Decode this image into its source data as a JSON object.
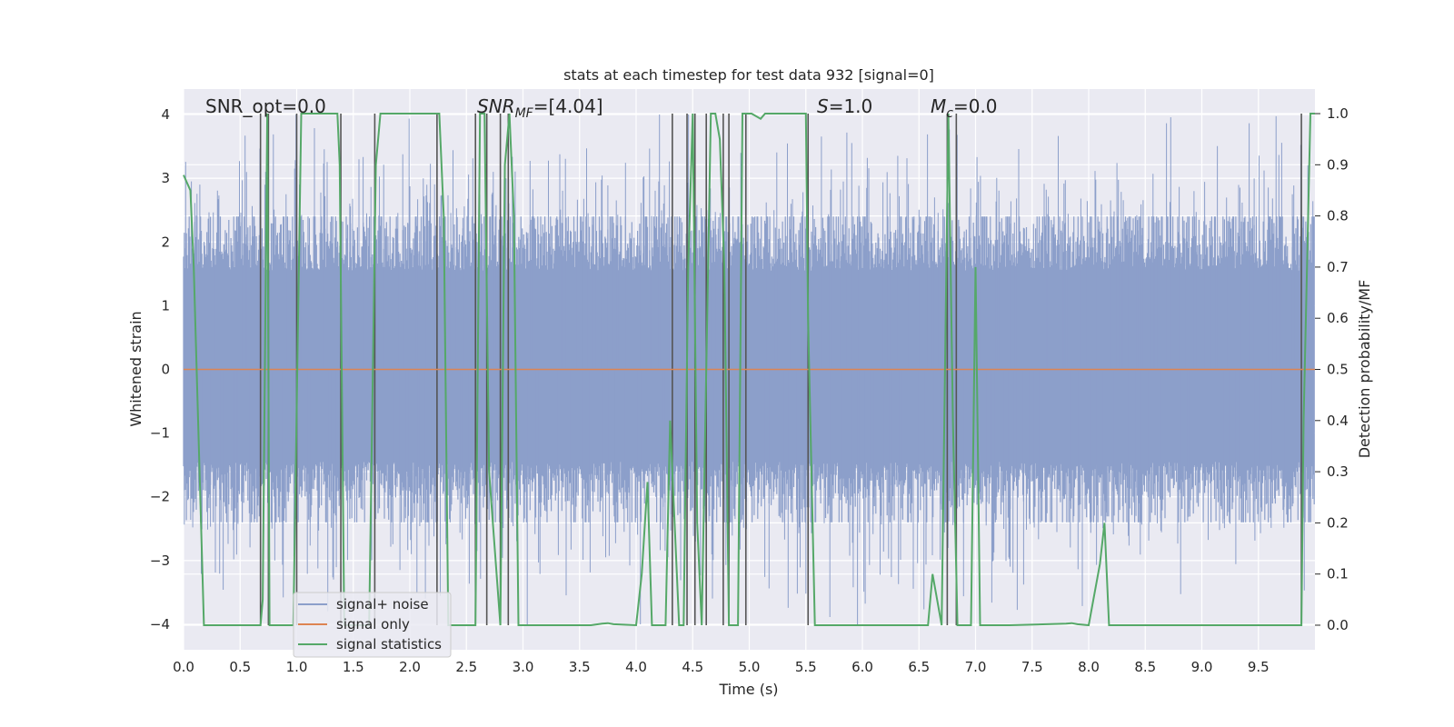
{
  "chart_data": {
    "type": "line",
    "title": "stats at each timestep for test data 932 [signal=0]",
    "xlabel": "Time (s)",
    "ylabel": "Whitened strain",
    "y2label": "Detection probability/MF",
    "xlim": [
      0,
      10
    ],
    "ylim": [
      -4.4,
      4.4
    ],
    "y2lim": [
      -0.048,
      1.048
    ],
    "grid": true,
    "legend_position": "lower-left",
    "x_ticks": [
      "0.0",
      "0.5",
      "1.0",
      "1.5",
      "2.0",
      "2.5",
      "3.0",
      "3.5",
      "4.0",
      "4.5",
      "5.0",
      "5.5",
      "6.0",
      "6.5",
      "7.0",
      "7.5",
      "8.0",
      "8.5",
      "9.0",
      "9.5"
    ],
    "y_ticks": [
      "4",
      "3",
      "2",
      "1",
      "0",
      "−1",
      "−2",
      "−3",
      "−4"
    ],
    "y2_ticks": [
      "1.0",
      "0.9",
      "0.8",
      "0.7",
      "0.6",
      "0.5",
      "0.4",
      "0.3",
      "0.2",
      "0.1",
      "0.0"
    ],
    "annotations": {
      "snr_opt": "SNR_opt=0.0",
      "snr_mf_main": "SNR",
      "snr_mf_sub": "MF",
      "snr_mf_value": "=[4.04]",
      "s_main": "S",
      "s_value": "=1.0",
      "mc_main": "M",
      "mc_sub": "c",
      "mc_value": "=0.0"
    },
    "series": [
      {
        "name": "signal+ noise",
        "color": "#8c9fca",
        "axis": "left",
        "representation": "dense whitened noise strain over 10 s, bulk within ±2.4 with spikes to about ±4",
        "duration_s": 10,
        "sample_count": 1600,
        "bulk_amplitude": 2.4,
        "max_amplitude": 4.0
      },
      {
        "name": "signal only",
        "color": "#dd8452",
        "axis": "left",
        "x": [
          0,
          10
        ],
        "y": [
          0,
          0
        ]
      },
      {
        "name": "signal statistics",
        "color": "#55a868",
        "axis": "right",
        "x": [
          0,
          0.06,
          0.09,
          0.18,
          0.68,
          0.7,
          0.74,
          0.76,
          0.8,
          0.84,
          0.97,
          1.04,
          1.08,
          1.36,
          1.38,
          1.42,
          1.64,
          1.7,
          1.74,
          2.26,
          2.3,
          2.34,
          2.5,
          2.58,
          2.62,
          2.66,
          2.7,
          2.8,
          2.84,
          2.88,
          2.92,
          2.96,
          3.0,
          3.6,
          3.7,
          3.75,
          3.8,
          4.0,
          4.05,
          4.1,
          4.14,
          4.26,
          4.3,
          4.38,
          4.42,
          4.46,
          4.5,
          4.54,
          4.58,
          4.62,
          4.66,
          4.7,
          4.74,
          4.78,
          4.82,
          4.86,
          4.9,
          4.94,
          5.02,
          5.1,
          5.14,
          5.2,
          5.5,
          5.52,
          5.58,
          6.58,
          6.6,
          6.62,
          6.66,
          6.7,
          6.76,
          6.8,
          6.84,
          6.92,
          6.96,
          7.0,
          7.04,
          7.08,
          7.12,
          7.3,
          7.8,
          7.85,
          7.9,
          8.0,
          8.1,
          8.14,
          8.18,
          8.22,
          8.3,
          9.5,
          9.85,
          9.88,
          9.9,
          9.96,
          10
        ],
        "y": [
          0.88,
          0.85,
          0.7,
          0,
          0,
          0.05,
          1.0,
          0,
          0,
          0,
          0,
          1.0,
          1.0,
          1.0,
          0.9,
          0.0,
          0.0,
          0.9,
          1.0,
          1.0,
          0.8,
          0.0,
          0,
          0,
          1.0,
          1.0,
          0.3,
          0.0,
          0.9,
          1.0,
          0.8,
          0,
          0,
          0,
          0.003,
          0.004,
          0.002,
          0,
          0.1,
          0.28,
          0.0,
          0,
          0.4,
          0.0,
          0,
          0.7,
          1.0,
          0.2,
          0.0,
          0.5,
          1.0,
          1.0,
          0.95,
          0.7,
          0.0,
          0.0,
          0.0,
          1.0,
          1.0,
          0.99,
          1.0,
          1.0,
          1.0,
          0.6,
          0,
          0,
          0.05,
          0.1,
          0.05,
          0,
          1.0,
          0.4,
          0.0,
          0.0,
          0.0,
          0.7,
          0.0,
          0,
          0,
          0,
          0.003,
          0.004,
          0.002,
          0,
          0.12,
          0.2,
          0.0,
          0,
          0,
          0,
          0,
          0,
          0.4,
          1.0,
          1.0
        ]
      }
    ],
    "event_markers": {
      "color": "#555555",
      "x": [
        0.68,
        0.75,
        1.0,
        1.39,
        1.69,
        2.24,
        2.58,
        2.68,
        2.8,
        2.87,
        4.32,
        4.45,
        4.52,
        4.62,
        4.77,
        4.82,
        4.97,
        5.52,
        6.75,
        6.83,
        9.88
      ]
    }
  },
  "legend": [
    {
      "label": "signal+ noise",
      "color": "#8c9fca"
    },
    {
      "label": "signal only",
      "color": "#dd8452"
    },
    {
      "label": "signal statistics",
      "color": "#55a868"
    }
  ]
}
